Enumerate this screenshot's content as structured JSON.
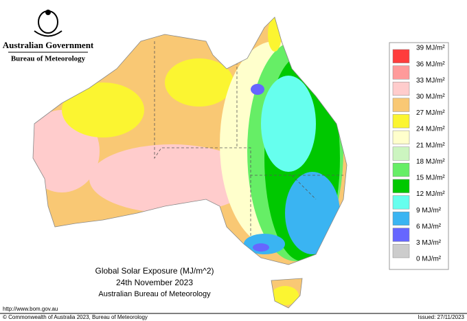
{
  "header": {
    "government": "Australian Government",
    "agency": "Bureau of Meteorology"
  },
  "title": {
    "line1": "Global Solar Exposure (MJ/m^2)",
    "line2": "24th November 2023",
    "line3": "Australian Bureau of Meteorology"
  },
  "legend": {
    "labels": [
      "39 MJ/m²",
      "36 MJ/m²",
      "33 MJ/m²",
      "30 MJ/m²",
      "27 MJ/m²",
      "24 MJ/m²",
      "21 MJ/m²",
      "18 MJ/m²",
      "15 MJ/m²",
      "12 MJ/m²",
      "9 MJ/m²",
      "6 MJ/m²",
      "3 MJ/m²",
      "0 MJ/m²"
    ],
    "colors": [
      "#ff3c3c",
      "#ff9a9a",
      "#ffcccc",
      "#f9c874",
      "#fbf531",
      "#ffffcc",
      "#ccf5c0",
      "#66ee66",
      "#00c800",
      "#66ffee",
      "#3ab4f2",
      "#6666ff",
      "#cccccc"
    ]
  },
  "footer": {
    "url": "http://www.bom.gov.au",
    "copyright": "© Commonwealth of Australia 2023, Bureau of Meteorology",
    "issued": "Issued: 27/11/2023"
  }
}
